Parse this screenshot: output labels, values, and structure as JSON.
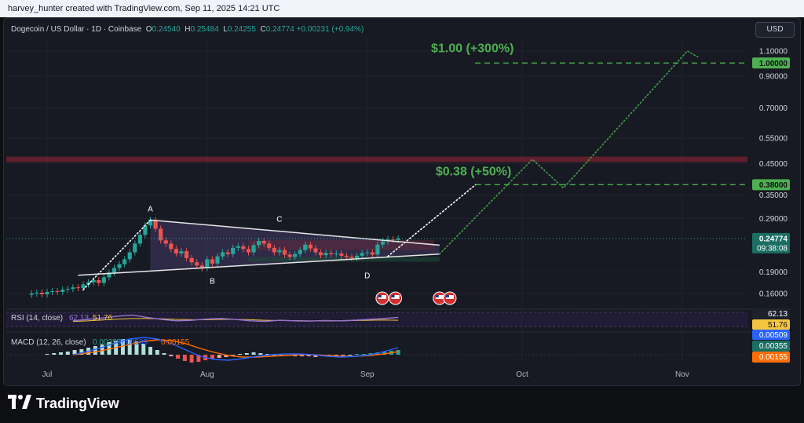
{
  "header": {
    "attribution": "harvey_hunter created with TradingView.com, Sep 11, 2025 14:21 UTC"
  },
  "legend": {
    "symbol": "Dogecoin / US Dollar · 1D · Coinbase",
    "o_label": "O",
    "o_value": "0.24540",
    "h_label": "H",
    "h_value": "0.25484",
    "l_label": "L",
    "l_value": "0.24255",
    "c_label": "C",
    "c_value": "0.24774",
    "change": "+0.00231 (+0.94%)"
  },
  "toolbar": {
    "currency_label": "USD"
  },
  "footer": {
    "brand": "TradingView",
    "brand_icon": "tradingview-logo-icon"
  },
  "colors": {
    "background": "#171a22",
    "up": "#26a69a",
    "down": "#ef5350",
    "target": "#4caf50",
    "rsi": "#9575cd",
    "rsi_ma": "#f5c542",
    "macd": "#2962ff",
    "signal": "#ff6d00",
    "resistance_zone": "#7a2230"
  },
  "chart_data": {
    "type": "candlestick",
    "title": "Dogecoin / US Dollar · 1D · Coinbase",
    "y_scale": "log",
    "price_ticks": [
      "1.10000",
      "0.90000",
      "0.70000",
      "0.55000",
      "0.45000",
      "0.35000",
      "0.29000",
      "0.19000",
      "0.16000"
    ],
    "price_tick_values": [
      1.1,
      0.9,
      0.7,
      0.55,
      0.45,
      0.35,
      0.29,
      0.19,
      0.16
    ],
    "x_ticks": [
      "Jul",
      "Aug",
      "Sep",
      "Oct",
      "Nov"
    ],
    "last_price": {
      "value": "0.24774",
      "countdown": "09:38:08"
    },
    "targets": [
      {
        "label": "$1.00 (+300%)",
        "level": "1.00000",
        "value": 1.0
      },
      {
        "label": "$0.38 (+50%)",
        "level": "0.38000",
        "value": 0.38
      }
    ],
    "resistance_zone": [
      0.455,
      0.475
    ],
    "pattern_points": [
      {
        "label": "A",
        "date": "2025-07-21",
        "price": 0.287
      },
      {
        "label": "B",
        "date": "2025-08-02",
        "price": 0.196
      },
      {
        "label": "C",
        "date": "2025-08-15",
        "price": 0.255
      },
      {
        "label": "D",
        "date": "2025-09-01",
        "price": 0.207
      }
    ],
    "triangle": {
      "upper": {
        "start": [
          "2025-07-21",
          0.287
        ],
        "end": [
          "2025-09-15",
          0.235
        ]
      },
      "lower": {
        "start": [
          "2025-07-07",
          0.185
        ],
        "end": [
          "2025-09-15",
          0.219
        ]
      }
    },
    "ohlc": {
      "start_date": "2025-06-28",
      "closes": [
        0.16,
        0.161,
        0.159,
        0.162,
        0.163,
        0.162,
        0.165,
        0.166,
        0.168,
        0.167,
        0.172,
        0.175,
        0.178,
        0.174,
        0.182,
        0.189,
        0.196,
        0.202,
        0.21,
        0.222,
        0.238,
        0.255,
        0.275,
        0.287,
        0.268,
        0.244,
        0.238,
        0.228,
        0.22,
        0.224,
        0.212,
        0.205,
        0.2,
        0.196,
        0.21,
        0.203,
        0.215,
        0.222,
        0.219,
        0.23,
        0.233,
        0.228,
        0.222,
        0.235,
        0.243,
        0.238,
        0.23,
        0.222,
        0.226,
        0.218,
        0.214,
        0.219,
        0.226,
        0.236,
        0.229,
        0.222,
        0.217,
        0.221,
        0.219,
        0.22,
        0.216,
        0.214,
        0.212,
        0.216,
        0.221,
        0.222,
        0.218,
        0.236,
        0.242,
        0.246,
        0.245,
        0.248
      ]
    },
    "rsi": {
      "label": "RSI (14, close)",
      "value": "62.13",
      "ma_value": "51.76"
    },
    "macd": {
      "label": "MACD (12, 26, close)",
      "hist": "0.00355",
      "macd": "0.00509",
      "signal": "0.00155"
    }
  }
}
